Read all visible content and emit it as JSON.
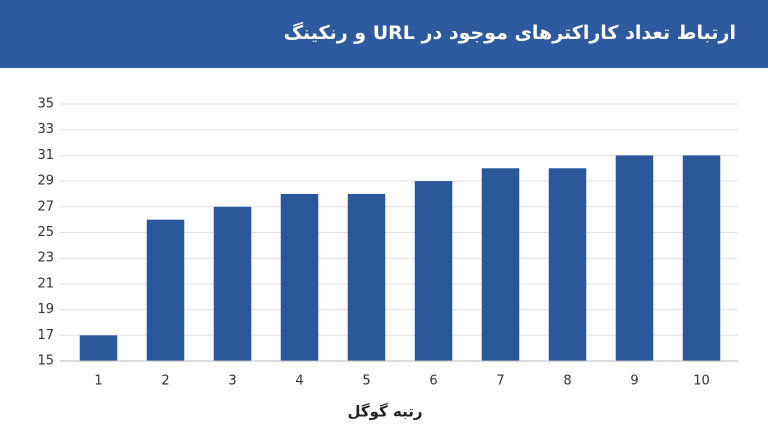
{
  "chart_data": {
    "type": "bar",
    "title": "ارتباط تعداد کاراکترهای موجود در URL و رنکینگ",
    "x_label": "رتبه گوگل",
    "categories": [
      "1",
      "2",
      "3",
      "4",
      "5",
      "6",
      "7",
      "8",
      "9",
      "10"
    ],
    "values": [
      17,
      26,
      27,
      28,
      28,
      29,
      30,
      30,
      31,
      31
    ],
    "color": "#2b579b",
    "ylim": [
      15,
      35
    ],
    "yticks": [
      15,
      17,
      19,
      21,
      23,
      25,
      27,
      29,
      31,
      33,
      35
    ],
    "grid": true
  }
}
